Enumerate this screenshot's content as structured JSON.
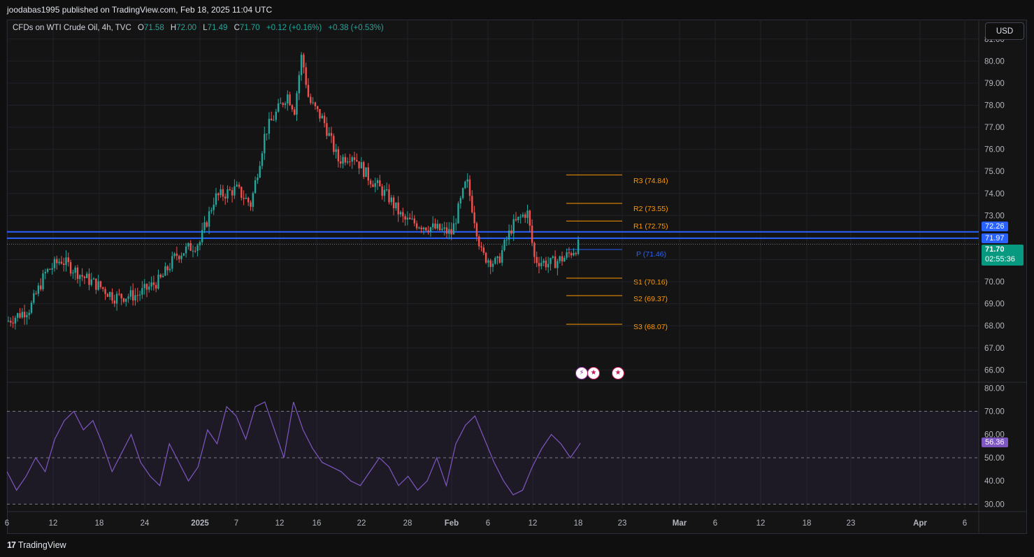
{
  "header": {
    "publisher_line": "joodabas1995 published on TradingView.com, Feb 18, 2025 11:04 UTC"
  },
  "legend": {
    "symbol": "CFDs on WTI Crude Oil, 4h, TVC",
    "o_label": "O",
    "o_value": "71.58",
    "h_label": "H",
    "h_value": "72.00",
    "l_label": "L",
    "l_value": "71.49",
    "c_label": "C",
    "c_value": "71.70",
    "change": "+0.12 (+0.16%)",
    "change2": "+0.38 (+0.53%)"
  },
  "currency_button": "USD",
  "footer": {
    "brand": "TradingView",
    "logo_glyph": "17"
  },
  "price_badges": {
    "upper_line": "72.26",
    "lower_line": "71.97",
    "last_price": "71.70",
    "countdown": "02:55:36",
    "rsi_value": "56.36"
  },
  "colors": {
    "up": "#26a69a",
    "down": "#ef5350",
    "pivot": "#ff9800",
    "pivot_p": "#2962ff",
    "hline": "#2962ff",
    "rsi": "#7e57c2",
    "last": "#089981"
  },
  "events": [
    "lightning-icon",
    "us-flag-icon",
    "us-flag-icon"
  ],
  "chart_data": [
    {
      "type": "candlestick",
      "title": "CFDs on WTI Crude Oil, 4h, TVC",
      "ylim": [
        65.6,
        81.5
      ],
      "y_ticks": [
        "81.00",
        "80.00",
        "79.00",
        "78.00",
        "77.00",
        "76.00",
        "75.00",
        "74.00",
        "73.00",
        "72.00",
        "71.00",
        "70.00",
        "69.00",
        "68.00",
        "67.00",
        "66.00"
      ],
      "x_ticks": [
        "6",
        "12",
        "18",
        "24",
        "2025",
        "7",
        "12",
        "16",
        "22",
        "28",
        "Feb",
        "6",
        "12",
        "18",
        "23",
        "Mar",
        "6",
        "12",
        "18",
        "23",
        "Apr",
        "6"
      ],
      "price_path": [
        [
          "Dec 6",
          68.2
        ],
        [
          "Dec 9",
          68.8
        ],
        [
          "Dec 11",
          70.4
        ],
        [
          "Dec 13",
          71.0
        ],
        [
          "Dec 16",
          70.2
        ],
        [
          "Dec 18",
          69.8
        ],
        [
          "Dec 20",
          69.3
        ],
        [
          "Dec 23",
          69.4
        ],
        [
          "Dec 26",
          70.1
        ],
        [
          "Dec 28",
          71.2
        ],
        [
          "Jan 1",
          71.8
        ],
        [
          "Jan 3",
          73.8
        ],
        [
          "Jan 6",
          74.2
        ],
        [
          "Jan 8",
          73.5
        ],
        [
          "Jan 10",
          76.8
        ],
        [
          "Jan 13",
          78.5
        ],
        [
          "Jan 14",
          77.8
        ],
        [
          "Jan 15",
          80.3
        ],
        [
          "Jan 16",
          78.2
        ],
        [
          "Jan 18",
          77.3
        ],
        [
          "Jan 20",
          75.5
        ],
        [
          "Jan 22",
          75.8
        ],
        [
          "Jan 24",
          74.8
        ],
        [
          "Jan 27",
          73.8
        ],
        [
          "Jan 29",
          72.8
        ],
        [
          "Feb 1",
          72.2
        ],
        [
          "Feb 3",
          74.6
        ],
        [
          "Feb 5",
          71.2
        ],
        [
          "Feb 7",
          70.8
        ],
        [
          "Feb 9",
          72.5
        ],
        [
          "Feb 11",
          73.2
        ],
        [
          "Feb 12",
          71.0
        ],
        [
          "Feb 14",
          70.8
        ],
        [
          "Feb 16",
          71.1
        ],
        [
          "Feb 18",
          71.7
        ]
      ],
      "horizontal_lines": [
        72.26,
        71.97
      ],
      "last_price": 71.7,
      "pivots": [
        {
          "label": "R3 (74.84)",
          "value": 74.84
        },
        {
          "label": "R2 (73.55)",
          "value": 73.55
        },
        {
          "label": "R1 (72.75)",
          "value": 72.75
        },
        {
          "label": "P (71.46)",
          "value": 71.46
        },
        {
          "label": "S1 (70.16)",
          "value": 70.16
        },
        {
          "label": "S2 (69.37)",
          "value": 69.37
        },
        {
          "label": "S3 (68.07)",
          "value": 68.07
        }
      ]
    },
    {
      "type": "line",
      "title": "RSI",
      "ylim": [
        28,
        81
      ],
      "y_ticks": [
        "80.00",
        "70.00",
        "60.00",
        "50.00",
        "40.00",
        "30.00"
      ],
      "bands": [
        70,
        50,
        30
      ],
      "last_value": 56.36,
      "values": [
        44,
        36,
        42,
        50,
        44,
        58,
        66,
        70,
        62,
        66,
        56,
        44,
        52,
        60,
        48,
        42,
        38,
        56,
        48,
        40,
        46,
        62,
        56,
        72,
        68,
        58,
        72,
        74,
        62,
        50,
        74,
        62,
        54,
        48,
        46,
        44,
        40,
        38,
        44,
        50,
        46,
        38,
        42,
        36,
        40,
        50,
        38,
        56,
        64,
        68,
        58,
        48,
        40,
        34,
        36,
        46,
        54,
        60,
        56,
        50,
        56
      ]
    }
  ]
}
